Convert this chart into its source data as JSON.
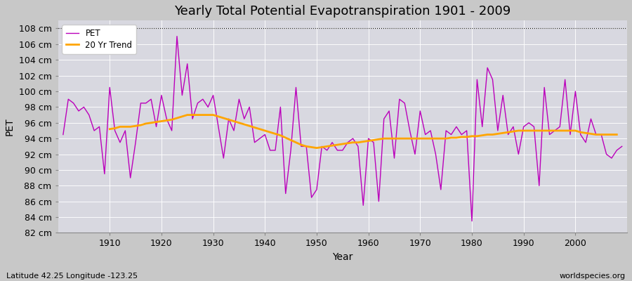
{
  "title": "Yearly Total Potential Evapotranspiration 1901 - 2009",
  "ylabel": "PET",
  "xlabel": "Year",
  "subtitle_left": "Latitude 42.25 Longitude -123.25",
  "subtitle_right": "worldspecies.org",
  "ylim": [
    82,
    109
  ],
  "ytick_step": 2,
  "fig_bg_color": "#c8c8c8",
  "plot_bg_color": "#d8d8e0",
  "pet_color": "#bb00bb",
  "trend_color": "#ffa500",
  "pet_label": "PET",
  "trend_label": "20 Yr Trend",
  "years": [
    1901,
    1902,
    1903,
    1904,
    1905,
    1906,
    1907,
    1908,
    1909,
    1910,
    1911,
    1912,
    1913,
    1914,
    1915,
    1916,
    1917,
    1918,
    1919,
    1920,
    1921,
    1922,
    1923,
    1924,
    1925,
    1926,
    1927,
    1928,
    1929,
    1930,
    1931,
    1932,
    1933,
    1934,
    1935,
    1936,
    1937,
    1938,
    1939,
    1940,
    1941,
    1942,
    1943,
    1944,
    1945,
    1946,
    1947,
    1948,
    1949,
    1950,
    1951,
    1952,
    1953,
    1954,
    1955,
    1956,
    1957,
    1958,
    1959,
    1960,
    1961,
    1962,
    1963,
    1964,
    1965,
    1966,
    1967,
    1968,
    1969,
    1970,
    1971,
    1972,
    1973,
    1974,
    1975,
    1976,
    1977,
    1978,
    1979,
    1980,
    1981,
    1982,
    1983,
    1984,
    1985,
    1986,
    1987,
    1988,
    1989,
    1990,
    1991,
    1992,
    1993,
    1994,
    1995,
    1996,
    1997,
    1998,
    1999,
    2000,
    2001,
    2002,
    2003,
    2004,
    2005,
    2006,
    2007,
    2008,
    2009
  ],
  "pet_values": [
    94.5,
    99.0,
    98.5,
    97.5,
    98.0,
    97.0,
    95.0,
    95.5,
    89.5,
    100.5,
    95.0,
    93.5,
    95.0,
    89.0,
    93.5,
    98.5,
    98.5,
    99.0,
    95.5,
    99.5,
    96.5,
    95.0,
    107.0,
    99.5,
    103.5,
    96.5,
    98.5,
    99.0,
    98.0,
    99.5,
    95.5,
    91.5,
    96.5,
    95.0,
    99.0,
    96.5,
    98.0,
    93.5,
    94.0,
    94.5,
    92.5,
    92.5,
    98.0,
    87.0,
    92.5,
    100.5,
    93.0,
    93.0,
    86.5,
    87.5,
    93.0,
    92.5,
    93.5,
    92.5,
    92.5,
    93.5,
    94.0,
    93.0,
    85.5,
    94.0,
    93.5,
    86.0,
    96.5,
    97.5,
    91.5,
    99.0,
    98.5,
    95.0,
    92.0,
    97.5,
    94.5,
    95.0,
    92.0,
    87.5,
    95.0,
    94.5,
    95.5,
    94.5,
    95.0,
    83.5,
    101.5,
    95.5,
    103.0,
    101.5,
    95.0,
    99.5,
    94.5,
    95.5,
    92.0,
    95.5,
    96.0,
    95.5,
    88.0,
    100.5,
    94.5,
    95.0,
    95.5,
    101.5,
    94.5,
    100.0,
    94.5,
    93.5,
    96.5,
    94.5,
    94.5,
    92.0,
    91.5,
    92.5,
    93.0
  ],
  "trend_values": [
    null,
    null,
    null,
    null,
    null,
    null,
    null,
    null,
    null,
    95.2,
    95.3,
    95.5,
    95.5,
    95.5,
    95.6,
    95.7,
    95.9,
    96.0,
    96.1,
    96.2,
    96.3,
    96.4,
    96.6,
    96.8,
    97.0,
    97.0,
    97.0,
    97.0,
    97.0,
    97.0,
    96.8,
    96.6,
    96.4,
    96.2,
    96.0,
    95.8,
    95.6,
    95.4,
    95.2,
    95.0,
    94.8,
    94.6,
    94.4,
    94.1,
    93.8,
    93.5,
    93.2,
    93.0,
    92.9,
    92.8,
    92.9,
    93.0,
    93.1,
    93.2,
    93.3,
    93.4,
    93.5,
    93.5,
    93.6,
    93.7,
    93.8,
    93.9,
    94.0,
    94.0,
    94.0,
    94.0,
    94.0,
    94.0,
    94.0,
    94.0,
    94.0,
    94.0,
    94.0,
    94.0,
    94.0,
    94.1,
    94.1,
    94.2,
    94.2,
    94.3,
    94.3,
    94.4,
    94.5,
    94.5,
    94.6,
    94.7,
    94.8,
    94.9,
    95.0,
    95.0,
    95.0,
    95.0,
    95.0,
    95.0,
    95.0,
    95.0,
    95.0,
    95.0,
    95.0,
    95.0,
    94.8,
    94.7,
    94.6,
    94.5,
    94.5,
    94.5,
    94.5,
    94.5
  ]
}
